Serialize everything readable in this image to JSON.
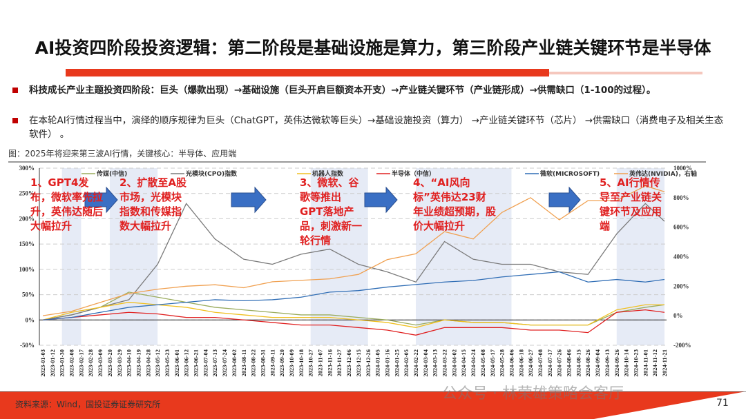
{
  "title": "AI投资四阶段投资逻辑：第二阶段是基础设施是算力，第三阶段产业链关键环节是半导体",
  "bullets": [
    "科技成长产业主题投资四阶段：巨头（爆款出现）→基础设施（巨头开启巨额资本开支）→产业链关键环节（产业链形成）→供需缺口（1-100的过程）。",
    "在本轮AI行情过程当中，演绎的顺序规律为巨头（ChatGPT，英伟达微软等巨头）→基础设施投资（算力） →产业链关键环节（芯片） →供需缺口（消费电子及相关生态软件） 。"
  ],
  "figure_caption": "图：2025年将迎来第三波AI行情，关键核心：半导体、应用端",
  "annotations": [
    "1、GPT4发布，微软率先拉升，英伟达随后大幅拉升",
    "2、扩散至A股市场，光模块指数和传媒指数大幅拉升",
    "3、微软、谷歌等推出GPT落地产品，刺激新一轮行情",
    "4、“AI风向标”英伟达23财年业绩超预期，股价大幅拉升",
    "5、AI行情传导至产业链关键环节及应用端"
  ],
  "source": "资料来源：Wind，国投证券证券研究所",
  "page_number": "71",
  "watermark": "公众号 · 林荣雄策略会客厅",
  "colors": {
    "accent": "#e8391d",
    "annotation": "#e02020",
    "arrow": "#3a6fc4",
    "shade": "#e6ebf6"
  },
  "chart_data": {
    "type": "line",
    "legend_position": "top",
    "grid": "horizontal dashed",
    "y_left": {
      "ticks": [
        "300%",
        "250%",
        "200%",
        "150%",
        "100%",
        "50%",
        "0%",
        "-50%"
      ],
      "range": [
        -50,
        300
      ]
    },
    "y_right": {
      "ticks": [
        "1000%",
        "800%",
        "600%",
        "400%",
        "200%",
        "0%",
        "-200%"
      ],
      "range": [
        -200,
        1000
      ]
    },
    "x_ticks": [
      "2023-01-03",
      "2023-01-12",
      "2023-01-30",
      "2023-02-08",
      "2023-02-17",
      "2023-02-28",
      "2023-03-09",
      "2023-03-20",
      "2023-03-29",
      "2023-04-10",
      "2023-04-19",
      "2023-04-28",
      "2023-05-12",
      "2023-05-23",
      "2023-06-01",
      "2023-06-12",
      "2023-06-21",
      "2023-07-04",
      "2023-07-13",
      "2023-07-24",
      "2023-08-02",
      "2023-08-11",
      "2023-08-22",
      "2023-08-31",
      "2023-09-11",
      "2023-09-20",
      "2023-10-09",
      "2023-10-18",
      "2023-10-27",
      "2023-11-07",
      "2023-11-16",
      "2023-11-27",
      "2023-12-06",
      "2023-12-15",
      "2023-12-26",
      "2024-01-05",
      "2024-01-16",
      "2024-01-25",
      "2024-02-05",
      "2024-02-22",
      "2024-03-04",
      "2024-03-13",
      "2024-03-22",
      "2024-04-02",
      "2024-04-15",
      "2024-04-24",
      "2024-05-08",
      "2024-05-17",
      "2024-05-28",
      "2024-06-06",
      "2024-06-18",
      "2024-06-27",
      "2024-07-08",
      "2024-07-17",
      "2024-07-26",
      "2024-08-06",
      "2024-08-15",
      "2024-08-26",
      "2024-09-04",
      "2024-09-13",
      "2024-09-26",
      "2024-10-14",
      "2024-10-23",
      "2024-11-01",
      "2024-11-12",
      "2024-11-21"
    ],
    "x": [
      "2023-01-03",
      "2023-02-08",
      "2023-03-09",
      "2023-04-10",
      "2023-05-12",
      "2023-06-12",
      "2023-07-13",
      "2023-08-11",
      "2023-09-11",
      "2023-10-18",
      "2023-11-16",
      "2023-12-15",
      "2024-01-16",
      "2024-02-22",
      "2024-03-22",
      "2024-04-24",
      "2024-05-28",
      "2024-06-27",
      "2024-07-26",
      "2024-08-26",
      "2024-09-26",
      "2024-11-01",
      "2024-11-21"
    ],
    "shaded_periods": [
      [
        "2023-01-30",
        "2023-02-17"
      ],
      [
        "2023-03-20",
        "2023-05-12"
      ],
      [
        "2023-10-27",
        "2023-12-26"
      ],
      [
        "2024-02-22",
        "2024-06-06"
      ],
      [
        "2024-09-26",
        "2024-11-21"
      ]
    ],
    "series": [
      {
        "name": "传媒(中信)",
        "axis": "left",
        "color": "#9aab5c",
        "values": [
          0,
          10,
          25,
          55,
          45,
          35,
          25,
          20,
          15,
          10,
          10,
          5,
          0,
          -10,
          0,
          -5,
          -5,
          -10,
          -10,
          -10,
          15,
          25,
          30
        ]
      },
      {
        "name": "光模块(CPO)指数",
        "axis": "left",
        "color": "#7a7a7a",
        "values": [
          0,
          10,
          25,
          40,
          110,
          230,
          160,
          120,
          110,
          130,
          140,
          110,
          95,
          75,
          155,
          120,
          110,
          110,
          95,
          90,
          170,
          230,
          195
        ]
      },
      {
        "name": "机器人指数",
        "axis": "left",
        "color": "#f0c020",
        "values": [
          0,
          15,
          25,
          35,
          30,
          25,
          15,
          10,
          5,
          5,
          5,
          0,
          -5,
          -15,
          0,
          -5,
          -5,
          -10,
          -10,
          -10,
          20,
          30,
          30
        ]
      },
      {
        "name": "半导体（中信）",
        "axis": "left",
        "color": "#e02020",
        "values": [
          0,
          5,
          10,
          15,
          12,
          5,
          5,
          0,
          -5,
          -10,
          -10,
          -15,
          -20,
          -30,
          -15,
          -15,
          -15,
          -20,
          -20,
          -25,
          15,
          20,
          15
        ]
      },
      {
        "name": "微软(MICROSOFT)",
        "axis": "left",
        "color": "#2f6db5",
        "values": [
          0,
          5,
          15,
          25,
          30,
          35,
          40,
          38,
          40,
          45,
          55,
          58,
          65,
          70,
          75,
          78,
          85,
          90,
          95,
          75,
          80,
          75,
          80
        ]
      },
      {
        "name": "英伟达(NVIDIA)，右轴",
        "axis": "right",
        "color": "#f0a050",
        "values": [
          0,
          30,
          90,
          150,
          180,
          200,
          210,
          190,
          230,
          240,
          250,
          280,
          380,
          420,
          570,
          520,
          700,
          800,
          650,
          780,
          780,
          880,
          840
        ]
      }
    ]
  }
}
